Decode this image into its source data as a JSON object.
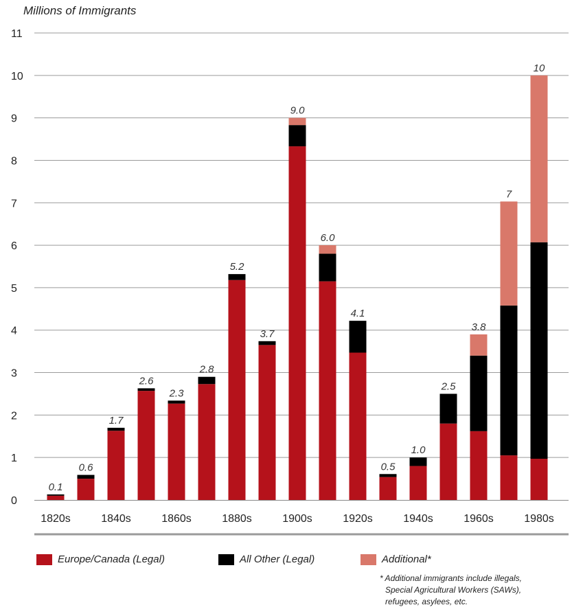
{
  "chart_data": {
    "type": "bar",
    "stacked": true,
    "ylabel": "Millions of Immigrants",
    "xlabel": "",
    "ylim": [
      0,
      11
    ],
    "yticks": [
      0,
      1,
      2,
      3,
      4,
      5,
      6,
      7,
      8,
      9,
      10,
      11
    ],
    "grid": true,
    "categories": [
      "1820s",
      "1830s",
      "1840s",
      "1850s",
      "1860s",
      "1870s",
      "1880s",
      "1890s",
      "1900s",
      "1910s",
      "1920s",
      "1930s",
      "1940s",
      "1950s",
      "1960s",
      "1970s",
      "1980s"
    ],
    "xtick_labels": [
      "1820s",
      "",
      "1840s",
      "",
      "1860s",
      "",
      "1880s",
      "",
      "1900s",
      "",
      "1920s",
      "",
      "1940s",
      "",
      "1960s",
      "",
      "1980s"
    ],
    "series": [
      {
        "name": "Europe/Canada (Legal)",
        "color": "#b5121b",
        "values": [
          0.1,
          0.5,
          1.63,
          2.57,
          2.27,
          2.73,
          5.18,
          3.65,
          8.33,
          5.15,
          3.47,
          0.54,
          0.8,
          1.8,
          1.62,
          1.05,
          0.97
        ]
      },
      {
        "name": "All Other (Legal)",
        "color": "#000000",
        "values": [
          0.03,
          0.09,
          0.07,
          0.06,
          0.07,
          0.17,
          0.14,
          0.09,
          0.5,
          0.65,
          0.75,
          0.07,
          0.2,
          0.7,
          1.78,
          3.53,
          5.1
        ]
      },
      {
        "name": "Additional*",
        "color": "#d9786a",
        "values": [
          0,
          0,
          0,
          0,
          0,
          0,
          0,
          0,
          0.17,
          0.2,
          0,
          0,
          0,
          0,
          0.5,
          2.45,
          3.93
        ]
      }
    ],
    "totals_labels": [
      "0.1",
      "0.6",
      "1.7",
      "2.6",
      "2.3",
      "2.8",
      "5.2",
      "3.7",
      "9.0",
      "6.0",
      "4.1",
      "0.5",
      "1.0",
      "2.5",
      "3.8",
      "7",
      "10"
    ],
    "legend_position": "bottom"
  },
  "footnote": [
    "* Additional immigrants include illegals,",
    "Special Agricultural Workers (SAWs),",
    "refugees, asylees, etc."
  ]
}
